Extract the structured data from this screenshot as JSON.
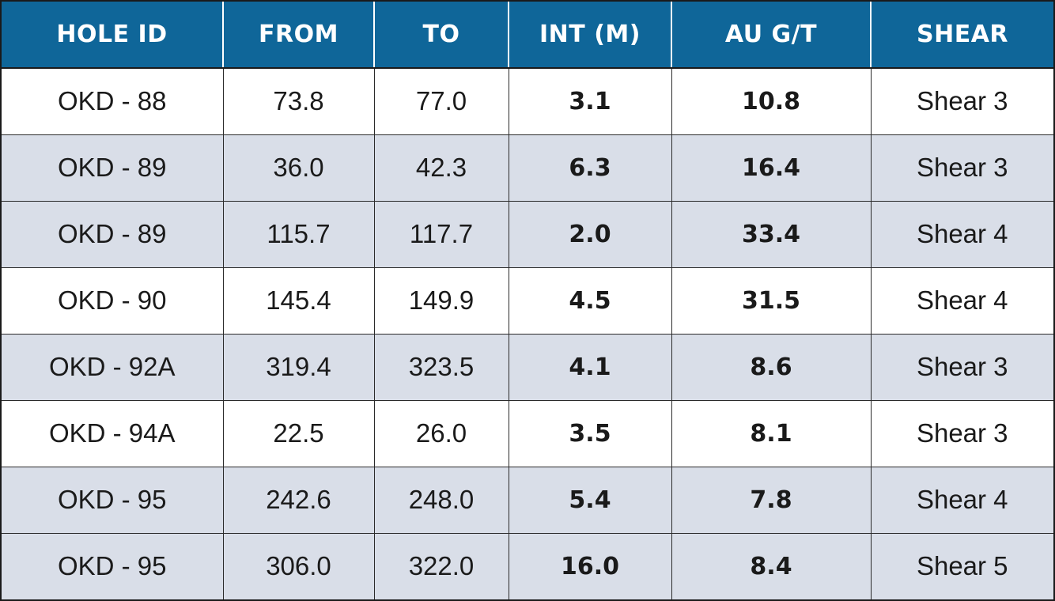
{
  "table": {
    "headers": [
      "HOLE ID",
      "FROM",
      "TO",
      "INT (M)",
      "AU G/T",
      "SHEAR"
    ],
    "rows": [
      {
        "hole_id": "OKD - 88",
        "from": "73.8",
        "to": "77.0",
        "int_m": "3.1",
        "au_gt": "10.8",
        "shear": "Shear 3",
        "shade": "white"
      },
      {
        "hole_id": "OKD - 89",
        "from": "36.0",
        "to": "42.3",
        "int_m": "6.3",
        "au_gt": "16.4",
        "shear": "Shear 3",
        "shade": "grey"
      },
      {
        "hole_id": "OKD - 89",
        "from": "115.7",
        "to": "117.7",
        "int_m": "2.0",
        "au_gt": "33.4",
        "shear": "Shear 4",
        "shade": "grey"
      },
      {
        "hole_id": "OKD - 90",
        "from": "145.4",
        "to": "149.9",
        "int_m": "4.5",
        "au_gt": "31.5",
        "shear": "Shear 4",
        "shade": "white"
      },
      {
        "hole_id": "OKD - 92A",
        "from": "319.4",
        "to": "323.5",
        "int_m": "4.1",
        "au_gt": "8.6",
        "shear": "Shear 3",
        "shade": "grey"
      },
      {
        "hole_id": "OKD - 94A",
        "from": "22.5",
        "to": "26.0",
        "int_m": "3.5",
        "au_gt": "8.1",
        "shear": "Shear 3",
        "shade": "white"
      },
      {
        "hole_id": "OKD - 95",
        "from": "242.6",
        "to": "248.0",
        "int_m": "5.4",
        "au_gt": "7.8",
        "shear": "Shear 4",
        "shade": "grey"
      },
      {
        "hole_id": "OKD - 95",
        "from": "306.0",
        "to": "322.0",
        "int_m": "16.0",
        "au_gt": "8.4",
        "shear": "Shear 5",
        "shade": "grey"
      }
    ]
  },
  "colors": {
    "header_background": "#0f6699",
    "header_text": "#ffffff",
    "row_shade_grey": "#d9dee8",
    "row_shade_white": "#ffffff",
    "cell_text": "#1a1a1a"
  }
}
